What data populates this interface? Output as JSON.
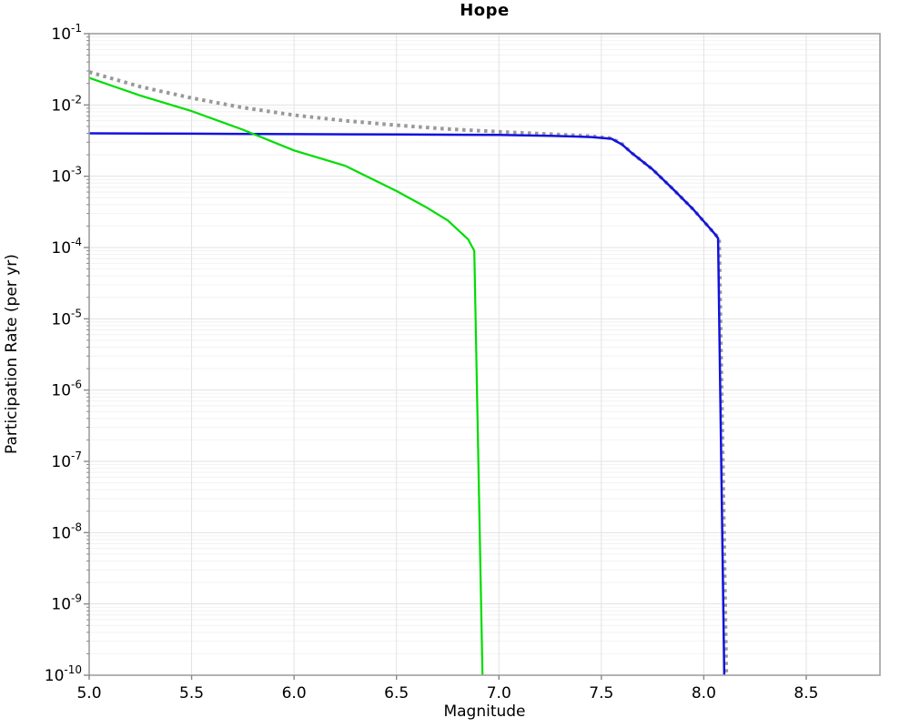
{
  "page": {
    "background": "#ffffff"
  },
  "chart_data": {
    "type": "line",
    "title": "Hope",
    "xlabel": "Magnitude",
    "ylabel": "Participation Rate (per yr)",
    "legend": "none",
    "x_axis": {
      "scale": "linear",
      "min": 5.0,
      "max": 8.86,
      "ticks": [
        5.0,
        5.5,
        6.0,
        6.5,
        7.0,
        7.5,
        8.0,
        8.5
      ],
      "tick_labels": [
        "5.0",
        "5.5",
        "6.0",
        "6.5",
        "7.0",
        "7.5",
        "8.0",
        "8.5"
      ]
    },
    "y_axis": {
      "scale": "log",
      "min": 1e-10,
      "max": 0.1,
      "max_exp": -1,
      "min_exp": -10,
      "base_label": "10",
      "tick_exponents": [
        -1,
        -2,
        -3,
        -4,
        -5,
        -6,
        -7,
        -8,
        -9,
        -10
      ],
      "minor_gridlines": true
    },
    "grid": {
      "major_color": "#e3e3e3",
      "minor_color": "#f2f2f2",
      "border_color": "#a0a0a0",
      "tick_color": "#888888"
    },
    "series": [
      {
        "name": "total-rate-dotted",
        "style": "dotted",
        "color": "#999999",
        "width": 4,
        "points": [
          [
            5.0,
            0.029
          ],
          [
            5.25,
            0.018
          ],
          [
            5.5,
            0.0125
          ],
          [
            5.75,
            0.0092
          ],
          [
            6.0,
            0.0072
          ],
          [
            6.25,
            0.006
          ],
          [
            6.5,
            0.0052
          ],
          [
            6.75,
            0.0046
          ],
          [
            7.0,
            0.0042
          ],
          [
            7.25,
            0.0039
          ],
          [
            7.45,
            0.00365
          ],
          [
            7.55,
            0.0034
          ],
          [
            7.6,
            0.00285
          ],
          [
            7.65,
            0.0021
          ],
          [
            7.75,
            0.00125
          ],
          [
            7.85,
            0.00066
          ],
          [
            7.95,
            0.00034
          ],
          [
            8.05,
            0.00016
          ],
          [
            8.075,
            0.000135
          ],
          [
            8.11,
            1e-10
          ]
        ]
      },
      {
        "name": "flat-participation-rate",
        "style": "solid",
        "color": "#1212e0",
        "width": 2.5,
        "points": [
          [
            5.0,
            0.004
          ],
          [
            5.5,
            0.00395
          ],
          [
            6.0,
            0.0039
          ],
          [
            6.5,
            0.00385
          ],
          [
            7.0,
            0.0038
          ],
          [
            7.25,
            0.0037
          ],
          [
            7.45,
            0.00355
          ],
          [
            7.55,
            0.00335
          ],
          [
            7.6,
            0.0028
          ],
          [
            7.65,
            0.0021
          ],
          [
            7.75,
            0.00125
          ],
          [
            7.85,
            0.00066
          ],
          [
            7.95,
            0.00034
          ],
          [
            8.05,
            0.00016
          ],
          [
            8.07,
            0.000135
          ],
          [
            8.1,
            1e-10
          ]
        ]
      },
      {
        "name": "declining-participation-rate",
        "style": "solid",
        "color": "#00dd00",
        "width": 2.2,
        "points": [
          [
            5.0,
            0.024
          ],
          [
            5.25,
            0.0135
          ],
          [
            5.5,
            0.0082
          ],
          [
            5.75,
            0.0045
          ],
          [
            6.0,
            0.0023
          ],
          [
            6.25,
            0.0014
          ],
          [
            6.5,
            0.00062
          ],
          [
            6.65,
            0.00036
          ],
          [
            6.75,
            0.00024
          ],
          [
            6.85,
            0.00013
          ],
          [
            6.88,
            9e-05
          ],
          [
            6.92,
            1e-10
          ]
        ]
      }
    ]
  }
}
